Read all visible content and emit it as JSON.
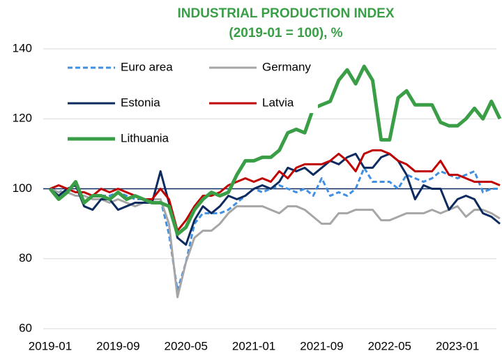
{
  "chart_data": {
    "type": "line",
    "title": "INDUSTRIAL PRODUCTION INDEX",
    "subtitle": "(2019-01 = 100), %",
    "categories": [
      "2019-01",
      null,
      null,
      null,
      null,
      null,
      null,
      null,
      "2019-09",
      null,
      null,
      null,
      null,
      null,
      null,
      null,
      "2020-05",
      null,
      null,
      null,
      null,
      null,
      null,
      null,
      "2021-01",
      null,
      null,
      null,
      null,
      null,
      null,
      null,
      "2021-09",
      null,
      null,
      null,
      null,
      null,
      null,
      null,
      "2022-05",
      null,
      null,
      null,
      null,
      null,
      null,
      null,
      "2023-01",
      null,
      null,
      null,
      null,
      null
    ],
    "ylim": [
      60,
      140
    ],
    "yticks": [
      60,
      80,
      100,
      120,
      140
    ],
    "grid": true,
    "baseline": 100,
    "legend": "top-left",
    "series": [
      {
        "name": "Euro area",
        "color": "#3f8fe3",
        "style": "dashed",
        "values": [
          100,
          99,
          100,
          99,
          99,
          98,
          98,
          98,
          99,
          98,
          97,
          97,
          97,
          97,
          87,
          71,
          79,
          90,
          93,
          93,
          93,
          94,
          96,
          98,
          100,
          99,
          100,
          101,
          100,
          99,
          100,
          98,
          103,
          98,
          99,
          98,
          100,
          106,
          102,
          102,
          102,
          100,
          104,
          103,
          102,
          103,
          105,
          104,
          103,
          104,
          105,
          99,
          100,
          100
        ]
      },
      {
        "name": "Germany",
        "color": "#a6a6a6",
        "style": "solid",
        "values": [
          100,
          99,
          99,
          98,
          98,
          97,
          97,
          96,
          97,
          96,
          95,
          96,
          97,
          97,
          90,
          69,
          79,
          86,
          88,
          88,
          90,
          93,
          95,
          95,
          95,
          95,
          94,
          93,
          95,
          95,
          94,
          92,
          90,
          90,
          93,
          93,
          94,
          94,
          94,
          91,
          91,
          92,
          93,
          93,
          93,
          94,
          93,
          94,
          95,
          92,
          94,
          94,
          93,
          91.5
        ]
      },
      {
        "name": "Estonia",
        "color": "#0d2b5e",
        "style": "solid",
        "values": [
          100,
          98,
          100,
          101,
          95,
          94,
          97,
          97,
          94,
          95,
          96,
          96,
          96,
          105,
          96,
          86,
          84,
          91,
          95,
          93,
          95,
          98,
          97,
          98,
          100,
          101,
          100,
          102,
          106,
          105,
          106,
          104,
          106,
          108,
          107,
          109,
          110,
          106,
          106,
          109,
          110,
          108,
          104,
          97,
          101,
          100,
          100,
          94,
          97,
          98,
          97,
          93,
          92,
          90
        ]
      },
      {
        "name": "Latvia",
        "color": "#c00000",
        "style": "solid",
        "values": [
          100,
          101,
          100,
          99,
          99,
          98,
          100,
          99,
          100,
          99,
          98,
          97,
          97,
          100,
          97,
          88,
          91,
          95,
          98,
          98,
          99,
          101,
          102,
          103,
          102,
          103,
          102,
          105,
          103,
          106,
          107,
          107,
          107,
          108,
          110,
          108,
          105,
          110,
          111,
          111,
          110,
          108,
          107,
          105,
          105,
          105,
          108,
          104,
          104,
          103,
          102,
          102,
          102,
          101
        ]
      },
      {
        "name": "Lithuania",
        "color": "#3a9e47",
        "style": "thick",
        "values": [
          100,
          97,
          99,
          102,
          96,
          98,
          98,
          97,
          99,
          97,
          98,
          97,
          96,
          96,
          95,
          87,
          89,
          94,
          97,
          99,
          98,
          99,
          104,
          108,
          108,
          109,
          109,
          111,
          116,
          117,
          116,
          123,
          124,
          125,
          131,
          134,
          130,
          135,
          131,
          114,
          114,
          126,
          128,
          124,
          124,
          124,
          119,
          118,
          118,
          120,
          123,
          120,
          125,
          120
        ]
      }
    ]
  }
}
